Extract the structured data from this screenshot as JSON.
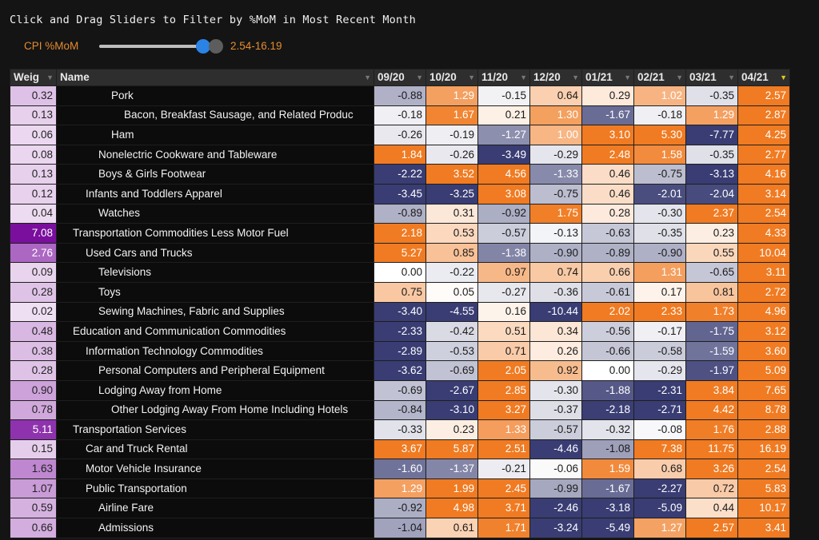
{
  "title": "Click and Drag Sliders to Filter by %MoM in Most Recent Month",
  "slider": {
    "label": "CPI %MoM",
    "range_text": "2.54-16.19",
    "min_value": 2.54,
    "max_value": 16.19
  },
  "colors": {
    "accent": "#e58b2f",
    "knob": "#2a83e5",
    "positive": "#f07b22",
    "negative": "#393d73",
    "weight_high": "#7a0f9e",
    "header_bg": "#2e2e2e"
  },
  "icons": {
    "filter": "filter-icon",
    "filter_active": "filter-active-icon"
  },
  "table": {
    "columns": [
      "Weig",
      "Name",
      "09/20",
      "10/20",
      "11/20",
      "12/20",
      "01/21",
      "02/21",
      "03/21",
      "04/21"
    ],
    "active_filter_column": 9,
    "rows": [
      {
        "weight": "0.32",
        "indent": 4,
        "name": "Pork",
        "values": [
          "-0.88",
          "1.29",
          "-0.15",
          "0.64",
          "0.29",
          "1.02",
          "-0.35",
          "2.57"
        ]
      },
      {
        "weight": "0.13",
        "indent": 5,
        "name": "Bacon, Breakfast Sausage, and Related Produc",
        "values": [
          "-0.18",
          "1.67",
          "0.21",
          "1.30",
          "-1.67",
          "-0.18",
          "1.29",
          "2.87"
        ]
      },
      {
        "weight": "0.06",
        "indent": 4,
        "name": "Ham",
        "values": [
          "-0.26",
          "-0.19",
          "-1.27",
          "1.00",
          "3.10",
          "5.30",
          "-7.77",
          "4.25"
        ]
      },
      {
        "weight": "0.08",
        "indent": 3,
        "name": "Nonelectric Cookware and Tableware",
        "values": [
          "1.84",
          "-0.26",
          "-3.49",
          "-0.29",
          "2.48",
          "1.58",
          "-0.35",
          "2.77"
        ]
      },
      {
        "weight": "0.13",
        "indent": 3,
        "name": "Boys & Girls Footwear",
        "values": [
          "-2.22",
          "3.52",
          "4.56",
          "-1.33",
          "0.46",
          "-0.75",
          "-3.13",
          "4.16"
        ]
      },
      {
        "weight": "0.12",
        "indent": 2,
        "name": "Infants and Toddlers Apparel",
        "values": [
          "-3.45",
          "-3.25",
          "3.08",
          "-0.75",
          "0.46",
          "-2.01",
          "-2.04",
          "3.14"
        ]
      },
      {
        "weight": "0.04",
        "indent": 3,
        "name": "Watches",
        "values": [
          "-0.89",
          "0.31",
          "-0.92",
          "1.75",
          "0.28",
          "-0.30",
          "2.37",
          "2.54"
        ]
      },
      {
        "weight": "7.08",
        "indent": 1,
        "name": "Transportation Commodities Less Motor Fuel",
        "values": [
          "2.18",
          "0.53",
          "-0.57",
          "-0.13",
          "-0.63",
          "-0.35",
          "0.23",
          "4.33"
        ]
      },
      {
        "weight": "2.76",
        "indent": 2,
        "name": "Used Cars and Trucks",
        "values": [
          "5.27",
          "0.85",
          "-1.38",
          "-0.90",
          "-0.89",
          "-0.90",
          "0.55",
          "10.04"
        ]
      },
      {
        "weight": "0.09",
        "indent": 3,
        "name": "Televisions",
        "values": [
          "0.00",
          "-0.22",
          "0.97",
          "0.74",
          "0.66",
          "1.31",
          "-0.65",
          "3.11"
        ]
      },
      {
        "weight": "0.28",
        "indent": 3,
        "name": "Toys",
        "values": [
          "0.75",
          "0.05",
          "-0.27",
          "-0.36",
          "-0.61",
          "0.17",
          "0.81",
          "2.72"
        ]
      },
      {
        "weight": "0.02",
        "indent": 3,
        "name": "Sewing Machines, Fabric and Supplies",
        "values": [
          "-3.40",
          "-4.55",
          "0.16",
          "-10.44",
          "2.02",
          "2.33",
          "1.73",
          "4.96"
        ]
      },
      {
        "weight": "0.48",
        "indent": 1,
        "name": "Education and Communication Commodities",
        "values": [
          "-2.33",
          "-0.42",
          "0.51",
          "0.34",
          "-0.56",
          "-0.17",
          "-1.75",
          "3.12"
        ]
      },
      {
        "weight": "0.38",
        "indent": 2,
        "name": "Information Technology Commodities",
        "values": [
          "-2.89",
          "-0.53",
          "0.71",
          "0.26",
          "-0.66",
          "-0.58",
          "-1.59",
          "3.60"
        ]
      },
      {
        "weight": "0.28",
        "indent": 3,
        "name": "Personal Computers and Peripheral Equipment",
        "values": [
          "-3.62",
          "-0.69",
          "2.05",
          "0.92",
          "0.00",
          "-0.29",
          "-1.97",
          "5.09"
        ]
      },
      {
        "weight": "0.90",
        "indent": 3,
        "name": "Lodging Away from Home",
        "values": [
          "-0.69",
          "-2.67",
          "2.85",
          "-0.30",
          "-1.88",
          "-2.31",
          "3.84",
          "7.65"
        ]
      },
      {
        "weight": "0.78",
        "indent": 4,
        "name": "Other Lodging Away From Home Including Hotels",
        "values": [
          "-0.84",
          "-3.10",
          "3.27",
          "-0.37",
          "-2.18",
          "-2.71",
          "4.42",
          "8.78"
        ]
      },
      {
        "weight": "5.11",
        "indent": 1,
        "name": "Transportation Services",
        "values": [
          "-0.33",
          "0.23",
          "1.33",
          "-0.57",
          "-0.32",
          "-0.08",
          "1.76",
          "2.88"
        ]
      },
      {
        "weight": "0.15",
        "indent": 2,
        "name": "Car and Truck Rental",
        "values": [
          "3.67",
          "5.87",
          "2.51",
          "-4.46",
          "-1.08",
          "7.38",
          "11.75",
          "16.19"
        ]
      },
      {
        "weight": "1.63",
        "indent": 2,
        "name": "Motor Vehicle Insurance",
        "values": [
          "-1.60",
          "-1.37",
          "-0.21",
          "-0.06",
          "1.59",
          "0.68",
          "3.26",
          "2.54"
        ]
      },
      {
        "weight": "1.07",
        "indent": 2,
        "name": "Public Transportation",
        "values": [
          "1.29",
          "1.99",
          "2.45",
          "-0.99",
          "-1.67",
          "-2.27",
          "0.72",
          "5.83"
        ]
      },
      {
        "weight": "0.59",
        "indent": 3,
        "name": "Airline Fare",
        "values": [
          "-0.92",
          "4.98",
          "3.71",
          "-2.46",
          "-3.18",
          "-5.09",
          "0.44",
          "10.17"
        ]
      },
      {
        "weight": "0.66",
        "indent": 3,
        "name": "Admissions",
        "values": [
          "-1.04",
          "0.61",
          "1.71",
          "-3.24",
          "-5.49",
          "1.27",
          "2.57",
          "3.41"
        ]
      }
    ]
  }
}
